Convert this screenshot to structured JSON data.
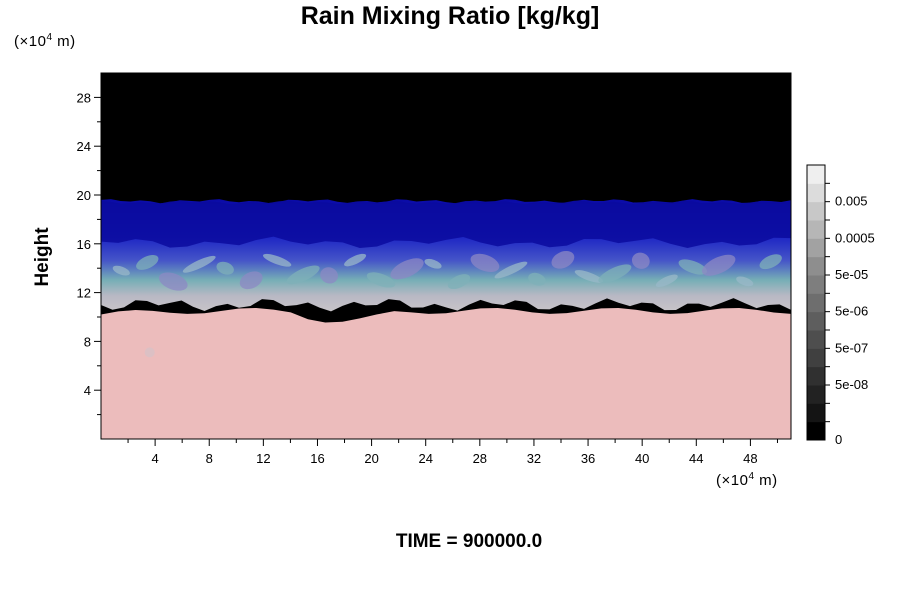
{
  "chart_data": {
    "type": "heatmap",
    "title": "Rain Mixing Ratio [kg/kg]",
    "ylabel": "Height",
    "y_unit": {
      "prefix": "(×10",
      "exp": "4",
      "suffix": " m)"
    },
    "x_unit": {
      "prefix": "(×10",
      "exp": "4",
      "suffix": " m)"
    },
    "x_range": [
      0,
      51
    ],
    "y_range": [
      0,
      30
    ],
    "x_ticks": [
      4,
      8,
      12,
      16,
      20,
      24,
      28,
      32,
      36,
      40,
      44,
      48
    ],
    "y_ticks": [
      4,
      8,
      12,
      16,
      20,
      24,
      28
    ],
    "colorbar": {
      "levels": [
        0,
        5e-09,
        1e-08,
        5e-08,
        1e-07,
        5e-07,
        1e-06,
        5e-06,
        1e-05,
        5e-05,
        0.0001,
        0.0005,
        0.001,
        0.005,
        0.01
      ],
      "labels": [
        {
          "text": "0",
          "level_index": 0
        },
        {
          "text": "5e-08",
          "level_index": 3
        },
        {
          "text": "5e-07",
          "level_index": 5
        },
        {
          "text": "5e-06",
          "level_index": 7
        },
        {
          "text": "5e-05",
          "level_index": 9
        },
        {
          "text": "0.0005",
          "level_index": 11
        },
        {
          "text": "0.005",
          "level_index": 13
        }
      ],
      "colors": [
        "#000000",
        "#141414",
        "#222222",
        "#303030",
        "#404040",
        "#4e4e4e",
        "#5e5e5e",
        "#6e6e6e",
        "#7e7e7e",
        "#8e8e8e",
        "#a2a2a2",
        "#b6b6b6",
        "#c8c8c8",
        "#dcdcdc",
        "#efefef"
      ]
    },
    "field_bands": [
      {
        "name": "upper-zero",
        "y_from": 19.5,
        "y_to": 30,
        "color": "#000000"
      },
      {
        "name": "dark-blue",
        "y_from": 16.5,
        "y_to": 19.5,
        "color": "#0a0a9e"
      },
      {
        "name": "mid-blue",
        "y_from": 14.0,
        "y_to": 16.5,
        "color": "#3a46c8"
      },
      {
        "name": "teal-mix",
        "y_from": 12.5,
        "y_to": 14.0,
        "color": "#7fb0b8"
      },
      {
        "name": "grey-mix",
        "y_from": 10.5,
        "y_to": 12.5,
        "color": "#c4c4c8"
      },
      {
        "name": "low-pink",
        "y_from": 0,
        "y_to": 10.5,
        "color": "#ecbcbc"
      }
    ],
    "grid": false,
    "legend": "right"
  },
  "time_line": {
    "label": "TIME = ",
    "value": "900000.0"
  }
}
